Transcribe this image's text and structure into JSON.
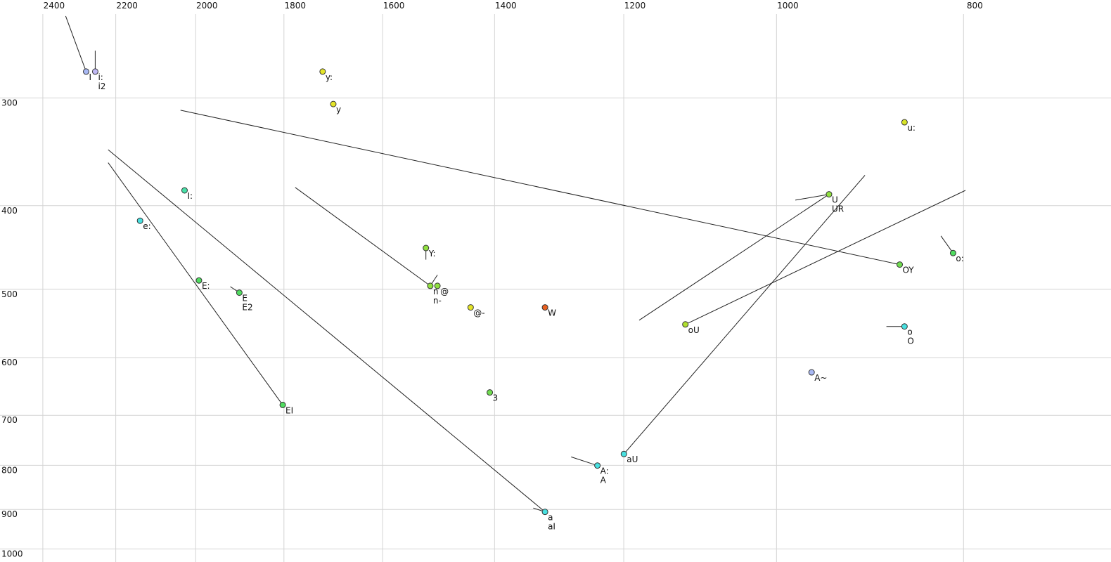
{
  "chart_data": {
    "type": "scatter",
    "xlim": [
      2560,
      680
    ],
    "ylim": [
      228,
      1022
    ],
    "xscale": "log",
    "yscale": "log",
    "grid": true,
    "xticks": [
      2400,
      2200,
      2000,
      1800,
      1600,
      1400,
      1200,
      1000,
      800
    ],
    "yticks": [
      300,
      400,
      500,
      600,
      700,
      800,
      900,
      1000
    ],
    "points": [
      {
        "label": "I",
        "x": 2310,
        "y": 276,
        "color": "#a8b8f4"
      },
      {
        "label": "i:",
        "label2": "i2",
        "x": 2285,
        "y": 276,
        "color": "#c0b8f4"
      },
      {
        "label": "y:",
        "x": 1742,
        "y": 276,
        "color": "#e4e428"
      },
      {
        "label": "y",
        "x": 1720,
        "y": 301,
        "color": "#e4e428"
      },
      {
        "label": "u:",
        "x": 870,
        "y": 316,
        "color": "#d8e428"
      },
      {
        "label": "I:",
        "x": 2054,
        "y": 379,
        "color": "#48e0a8"
      },
      {
        "label": "e:",
        "x": 2166,
        "y": 411,
        "color": "#48e0e0"
      },
      {
        "label": "E:",
        "x": 2019,
        "y": 482,
        "color": "#50dc60"
      },
      {
        "label": "E",
        "label2": "E2",
        "x": 1924,
        "y": 498,
        "color": "#50dc60"
      },
      {
        "label": "EI",
        "x": 1827,
        "y": 672,
        "color": "#50dc60"
      },
      {
        "label": "Y:",
        "x": 1540,
        "y": 442,
        "color": "#90e040"
      },
      {
        "label": "n",
        "label2": "n-",
        "x": 1532,
        "y": 489,
        "color": "#90e040"
      },
      {
        "label": "@",
        "x": 1519,
        "y": 489,
        "color": "#90e040"
      },
      {
        "label": "@-",
        "x": 1460,
        "y": 518,
        "color": "#e4e428"
      },
      {
        "label": "W",
        "x": 1336,
        "y": 518,
        "color": "#e86020"
      },
      {
        "label": "3",
        "x": 1427,
        "y": 650,
        "color": "#70dc50"
      },
      {
        "label": "A:",
        "label2": "A",
        "x": 1255,
        "y": 790,
        "color": "#48e0e0"
      },
      {
        "label": "aU",
        "x": 1216,
        "y": 766,
        "color": "#48e0e0"
      },
      {
        "label": "a",
        "label2": "aI",
        "x": 1336,
        "y": 894,
        "color": "#48e0e0"
      },
      {
        "label": "U",
        "label2": "UR",
        "x": 952,
        "y": 383,
        "color": "#90e040"
      },
      {
        "label": "OY",
        "x": 875,
        "y": 462,
        "color": "#70dc50"
      },
      {
        "label": "o:",
        "x": 821,
        "y": 448,
        "color": "#50dc60"
      },
      {
        "label": "oU",
        "x": 1130,
        "y": 542,
        "color": "#b0e030"
      },
      {
        "label": "o",
        "label2": "O",
        "x": 870,
        "y": 545,
        "color": "#48e0e0"
      },
      {
        "label": "A~",
        "x": 972,
        "y": 616,
        "color": "#a8b8f4"
      }
    ],
    "trajectories": [
      {
        "x": [
          2367,
          2310
        ],
        "y": [
          238,
          276
        ]
      },
      {
        "x": [
          2285,
          2285
        ],
        "y": [
          261,
          276
        ]
      },
      {
        "x": [
          2064,
          875
        ],
        "y": [
          306,
          462
        ]
      },
      {
        "x": [
          2250,
          1336
        ],
        "y": [
          340,
          894
        ]
      },
      {
        "x": [
          2250,
          1827
        ],
        "y": [
          352,
          672
        ]
      },
      {
        "x": [
          1800,
          1532
        ],
        "y": [
          376,
          489
        ]
      },
      {
        "x": [
          1532,
          1519
        ],
        "y": [
          489,
          475
        ]
      },
      {
        "x": [
          1540,
          1540
        ],
        "y": [
          442,
          456
        ]
      },
      {
        "x": [
          1945,
          1924
        ],
        "y": [
          490,
          498
        ]
      },
      {
        "x": [
          1355,
          1336
        ],
        "y": [
          885,
          894
        ]
      },
      {
        "x": [
          1295,
          1255
        ],
        "y": [
          772,
          790
        ]
      },
      {
        "x": [
          1216,
          912
        ],
        "y": [
          766,
          364
        ]
      },
      {
        "x": [
          1194,
          952
        ],
        "y": [
          536,
          383
        ]
      },
      {
        "x": [
          991,
          952
        ],
        "y": [
          389,
          383
        ]
      },
      {
        "x": [
          1130,
          809
        ],
        "y": [
          542,
          379
        ]
      },
      {
        "x": [
          833,
          821
        ],
        "y": [
          428,
          448
        ]
      },
      {
        "x": [
          889,
          870
        ],
        "y": [
          545,
          545
        ]
      }
    ]
  }
}
